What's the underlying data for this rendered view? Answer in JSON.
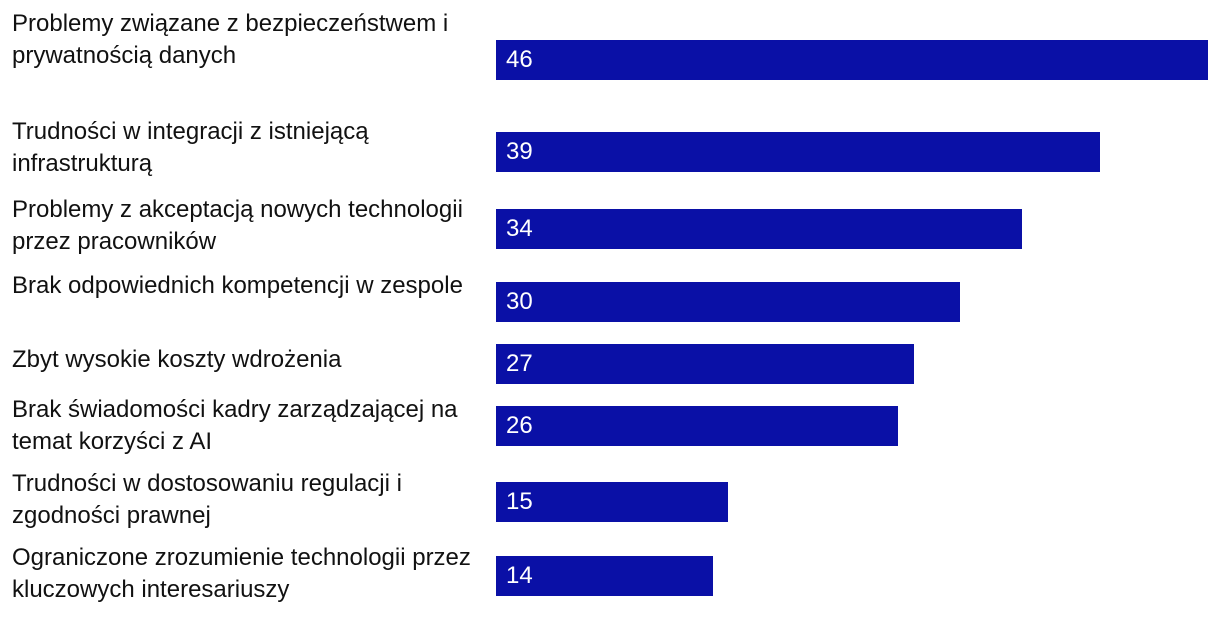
{
  "chart_data": {
    "type": "bar",
    "orientation": "horizontal",
    "title": "",
    "xlabel": "",
    "ylabel": "",
    "xlim": [
      0,
      46
    ],
    "grid": false,
    "bar_color": "#0a10a6",
    "label_color": "#ffffff",
    "categories": [
      "Problemy związane z bezpieczeństwem i prywatnością danych",
      "Trudności w integracji z istniejącą infrastrukturą",
      "Problemy z akceptacją nowych technologii przez pracowników",
      "Brak odpowiednich kompetencji w zespole",
      "Zbyt wysokie koszty wdrożenia",
      "Brak świadomości kadry zarządzającej na temat korzyści z AI",
      "Trudności w dostosowaniu regulacji i zgodności prawnej",
      "Ograniczone zrozumienie technologii przez kluczowych interesariuszy"
    ],
    "values": [
      46,
      39,
      34,
      30,
      27,
      26,
      15,
      14
    ]
  }
}
